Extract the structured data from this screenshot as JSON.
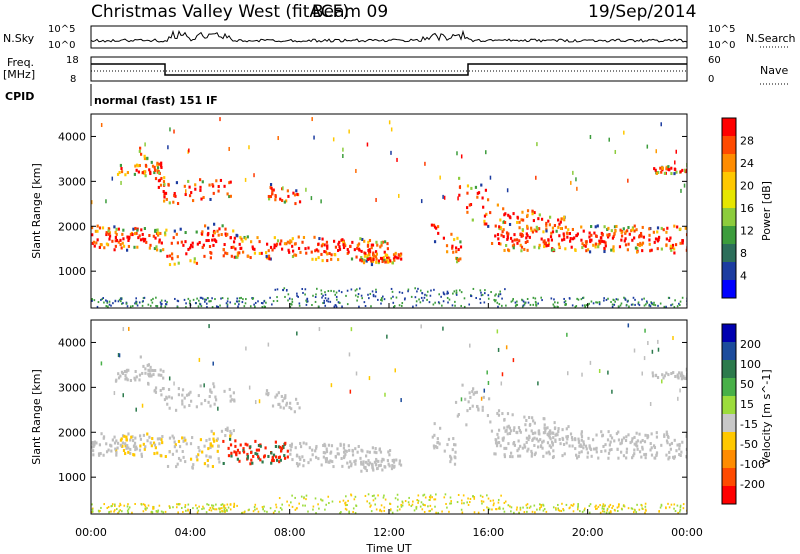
{
  "header": {
    "station": "Christmas Valley West (fitACF)",
    "beam": "Beam 09",
    "date": "19/Sep/2014"
  },
  "strip_panels": {
    "nsky_label": "N.Sky",
    "nsky_ticks": [
      "10^5",
      "10^0"
    ],
    "nsearch_label": "N.Search",
    "nsearch_ticks": [
      "10^5",
      "10^0"
    ],
    "freq_label_1": "Freq.",
    "freq_label_2": "[MHz]",
    "freq_ticks": [
      "18",
      "8"
    ],
    "nave_label": "Nave",
    "nave_ticks": [
      "60",
      "0"
    ],
    "cpid_label": "CPID",
    "cpid_text": "normal (fast) 151 IF"
  },
  "chart_data": [
    {
      "type": "heatmap",
      "name": "power",
      "ylabel": "Slant Range [km]",
      "colorbar_label": "Power [dB]",
      "yticks": [
        "1000",
        "2000",
        "3000",
        "4000"
      ],
      "ylim": [
        180,
        4500
      ],
      "colorbar_ticks": [
        "28",
        "24",
        "20",
        "16",
        "12",
        "8",
        "4"
      ],
      "colorbar_colors": [
        "#ff0000",
        "#ff4a00",
        "#ff8c00",
        "#ffc800",
        "#e6e600",
        "#8ccc3c",
        "#3c9c3c",
        "#2c6e5a",
        "#1c3ca0",
        "#0000ff"
      ]
    },
    {
      "type": "heatmap",
      "name": "velocity",
      "ylabel": "Slant Range [km]",
      "colorbar_label": "Velocity [m s^-1]",
      "yticks": [
        "1000",
        "2000",
        "3000",
        "4000"
      ],
      "ylim": [
        180,
        4500
      ],
      "colorbar_ticks": [
        "200",
        "100",
        "50",
        "15",
        "-15",
        "-50",
        "-100",
        "-200"
      ],
      "colorbar_colors": [
        "#0000b0",
        "#1c4c9c",
        "#2c7a4c",
        "#48b048",
        "#9cdc3c",
        "#c8c8c8",
        "#ffc800",
        "#ff8c00",
        "#ff4a00",
        "#ff0000"
      ]
    }
  ],
  "x_axis": {
    "label": "Time UT",
    "ticks": [
      "00:00",
      "04:00",
      "08:00",
      "12:00",
      "16:00",
      "20:00",
      "00:00"
    ]
  },
  "colors": {
    "ground_scatter": "#bebebe",
    "axis": "#000000"
  }
}
